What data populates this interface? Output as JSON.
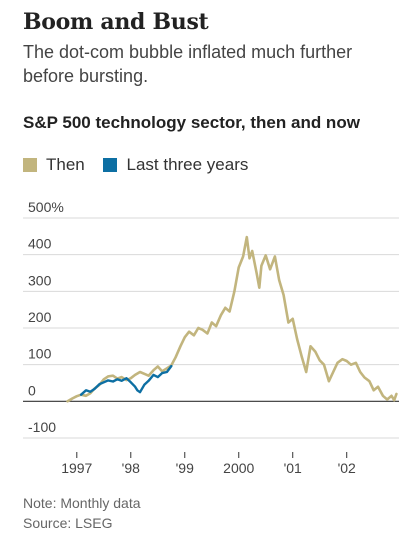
{
  "header": {
    "title": "Boom and Bust",
    "subtitle": "The dot-com bubble inflated much further before bursting."
  },
  "chart_data": {
    "type": "line",
    "title": "S&P 500 technology sector, then and now",
    "xlabel": "",
    "ylabel": "",
    "ylim": [
      -100,
      500
    ],
    "y_ticks": [
      {
        "value": 500,
        "label": "500%"
      },
      {
        "value": 400,
        "label": "400"
      },
      {
        "value": 300,
        "label": "300"
      },
      {
        "value": 200,
        "label": "200"
      },
      {
        "value": 100,
        "label": "100"
      },
      {
        "value": 0,
        "label": "0"
      },
      {
        "value": -100,
        "label": "-100"
      }
    ],
    "xlim": [
      1996.8,
      2002.95
    ],
    "x_ticks": [
      {
        "value": 1997.0,
        "label": "1997"
      },
      {
        "value": 1998.0,
        "label": "'98"
      },
      {
        "value": 1999.0,
        "label": "'99"
      },
      {
        "value": 2000.0,
        "label": "2000"
      },
      {
        "value": 2001.0,
        "label": "'01"
      },
      {
        "value": 2002.0,
        "label": "'02"
      }
    ],
    "grid": "horizontal",
    "legend": "top-left",
    "series": [
      {
        "name": "Then",
        "color": "#c2b57e",
        "points": [
          [
            1996.83,
            0
          ],
          [
            1996.92,
            8
          ],
          [
            1997.0,
            14
          ],
          [
            1997.08,
            18
          ],
          [
            1997.17,
            15
          ],
          [
            1997.25,
            22
          ],
          [
            1997.33,
            35
          ],
          [
            1997.42,
            45
          ],
          [
            1997.5,
            60
          ],
          [
            1997.58,
            68
          ],
          [
            1997.67,
            70
          ],
          [
            1997.75,
            62
          ],
          [
            1997.83,
            66
          ],
          [
            1997.92,
            58
          ],
          [
            1998.0,
            63
          ],
          [
            1998.08,
            72
          ],
          [
            1998.17,
            80
          ],
          [
            1998.25,
            75
          ],
          [
            1998.33,
            70
          ],
          [
            1998.42,
            85
          ],
          [
            1998.5,
            95
          ],
          [
            1998.58,
            82
          ],
          [
            1998.67,
            90
          ],
          [
            1998.75,
            98
          ],
          [
            1998.83,
            120
          ],
          [
            1998.92,
            150
          ],
          [
            1999.0,
            175
          ],
          [
            1999.08,
            190
          ],
          [
            1999.17,
            180
          ],
          [
            1999.25,
            200
          ],
          [
            1999.33,
            195
          ],
          [
            1999.42,
            185
          ],
          [
            1999.5,
            215
          ],
          [
            1999.58,
            205
          ],
          [
            1999.67,
            235
          ],
          [
            1999.75,
            255
          ],
          [
            1999.83,
            245
          ],
          [
            1999.92,
            300
          ],
          [
            2000.0,
            365
          ],
          [
            2000.08,
            395
          ],
          [
            2000.15,
            448
          ],
          [
            2000.2,
            390
          ],
          [
            2000.25,
            410
          ],
          [
            2000.33,
            350
          ],
          [
            2000.38,
            310
          ],
          [
            2000.42,
            370
          ],
          [
            2000.5,
            398
          ],
          [
            2000.58,
            360
          ],
          [
            2000.67,
            395
          ],
          [
            2000.75,
            330
          ],
          [
            2000.83,
            290
          ],
          [
            2000.92,
            215
          ],
          [
            2001.0,
            225
          ],
          [
            2001.08,
            170
          ],
          [
            2001.17,
            120
          ],
          [
            2001.25,
            80
          ],
          [
            2001.33,
            150
          ],
          [
            2001.42,
            135
          ],
          [
            2001.5,
            112
          ],
          [
            2001.58,
            100
          ],
          [
            2001.67,
            55
          ],
          [
            2001.75,
            80
          ],
          [
            2001.83,
            105
          ],
          [
            2001.92,
            115
          ],
          [
            2002.0,
            110
          ],
          [
            2002.08,
            100
          ],
          [
            2002.17,
            105
          ],
          [
            2002.25,
            80
          ],
          [
            2002.33,
            65
          ],
          [
            2002.42,
            55
          ],
          [
            2002.5,
            30
          ],
          [
            2002.58,
            40
          ],
          [
            2002.67,
            15
          ],
          [
            2002.75,
            5
          ],
          [
            2002.83,
            15
          ],
          [
            2002.88,
            3
          ],
          [
            2002.92,
            20
          ]
        ]
      },
      {
        "name": "Last three years",
        "color": "#0d6fa3",
        "points": [
          [
            1997.08,
            18
          ],
          [
            1997.17,
            30
          ],
          [
            1997.25,
            26
          ],
          [
            1997.33,
            34
          ],
          [
            1997.42,
            47
          ],
          [
            1997.5,
            52
          ],
          [
            1997.58,
            57
          ],
          [
            1997.67,
            54
          ],
          [
            1997.75,
            60
          ],
          [
            1997.83,
            56
          ],
          [
            1997.92,
            63
          ],
          [
            1998.0,
            52
          ],
          [
            1998.08,
            40
          ],
          [
            1998.12,
            30
          ],
          [
            1998.17,
            25
          ],
          [
            1998.25,
            45
          ],
          [
            1998.33,
            56
          ],
          [
            1998.42,
            72
          ],
          [
            1998.5,
            66
          ],
          [
            1998.58,
            77
          ],
          [
            1998.67,
            80
          ],
          [
            1998.75,
            96
          ]
        ]
      }
    ],
    "note": "Note: Monthly data",
    "source": "Source: LSEG"
  }
}
